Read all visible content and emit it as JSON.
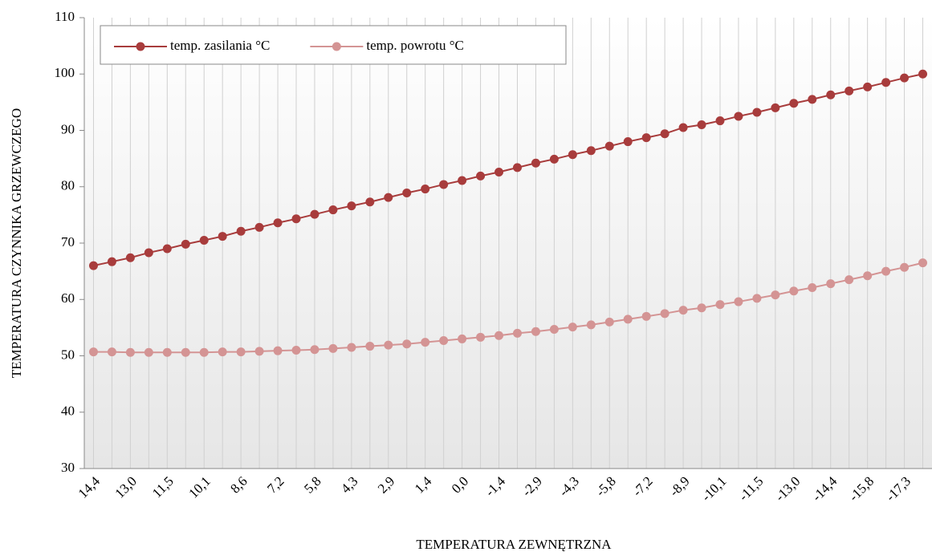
{
  "chart_data": {
    "type": "line",
    "x_label": "TEMPERATURA ZEWNĘTRZNA",
    "y_label": "TEMPERATURA CZYNNIKA GRZEWCZEGO",
    "categories": [
      "14,4",
      null,
      "13,0",
      null,
      "11,5",
      null,
      "10,1",
      null,
      "8,6",
      null,
      "7,2",
      null,
      "5,8",
      null,
      "4,3",
      null,
      "2,9",
      null,
      "1,4",
      null,
      "0,0",
      null,
      "-1,4",
      null,
      "-2,9",
      null,
      "-4,3",
      null,
      "-5,8",
      null,
      "-7,2",
      null,
      "-8,9",
      null,
      "-10,1",
      null,
      "-11,5",
      null,
      "-13,0",
      null,
      "-14,4",
      null,
      "-15,8",
      null,
      "-17,3",
      null
    ],
    "series": [
      {
        "name": "temp. zasilania °C",
        "color": "#a83c3c",
        "values": [
          66,
          66.7,
          67.4,
          68.3,
          69,
          69.8,
          70.5,
          71.2,
          72.1,
          72.8,
          73.6,
          74.3,
          75.1,
          75.9,
          76.6,
          77.3,
          78.1,
          78.9,
          79.6,
          80.4,
          81.1,
          81.9,
          82.6,
          83.4,
          84.2,
          84.9,
          85.7,
          86.4,
          87.2,
          88.0,
          88.7,
          89.4,
          90.5,
          91.0,
          91.7,
          92.5,
          93.2,
          94.0,
          94.8,
          95.5,
          96.3,
          97.0,
          97.7,
          98.5,
          99.3,
          100
        ]
      },
      {
        "name": "temp. powrotu °C",
        "color": "#d49494",
        "values": [
          50.7,
          50.7,
          50.6,
          50.6,
          50.6,
          50.6,
          50.6,
          50.7,
          50.7,
          50.8,
          50.9,
          51.0,
          51.1,
          51.3,
          51.5,
          51.7,
          51.9,
          52.1,
          52.4,
          52.7,
          53.0,
          53.3,
          53.6,
          54.0,
          54.3,
          54.7,
          55.1,
          55.5,
          56.0,
          56.5,
          57.0,
          57.5,
          58.1,
          58.5,
          59.1,
          59.6,
          60.2,
          60.8,
          61.5,
          62.1,
          62.8,
          63.5,
          64.2,
          65.0,
          65.7,
          66.5
        ]
      }
    ],
    "ylim": [
      30,
      110
    ],
    "yticks": [
      30,
      40,
      50,
      60,
      70,
      80,
      90,
      100,
      110
    ],
    "grid": true,
    "legend": "top-left"
  }
}
